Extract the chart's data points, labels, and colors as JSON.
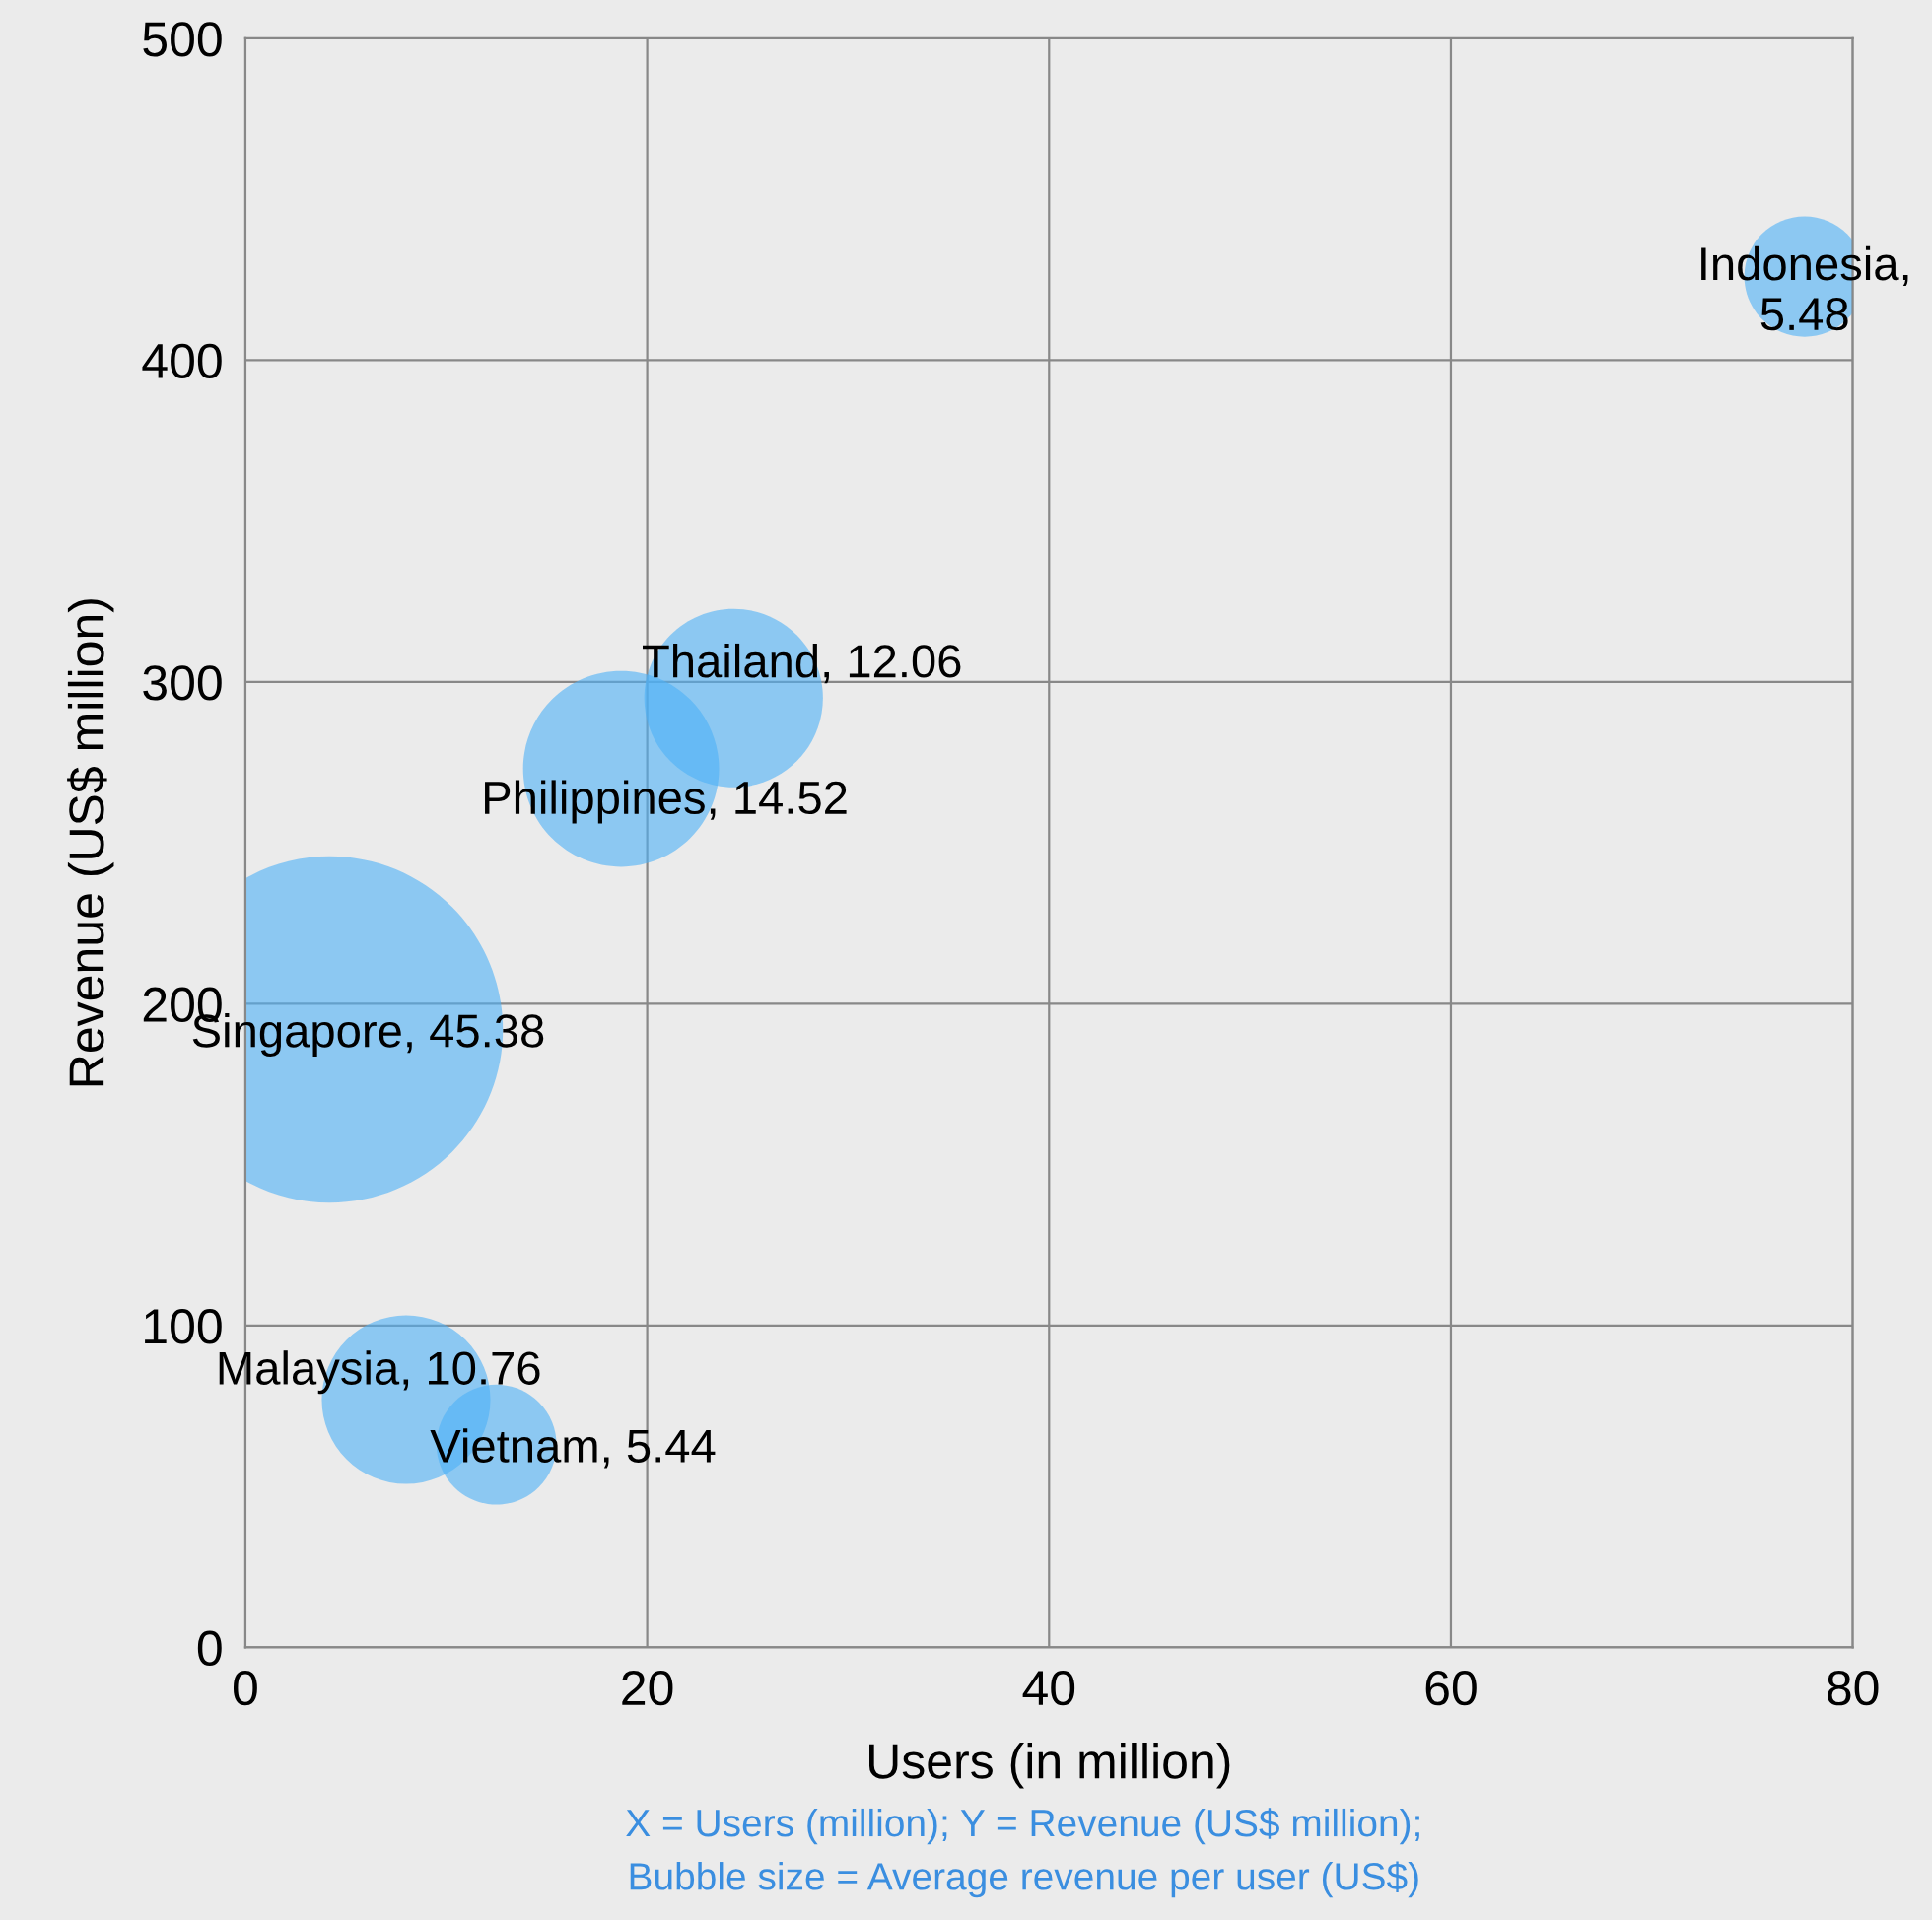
{
  "chart_data": {
    "type": "bubble",
    "xlabel": "Users (in million)",
    "ylabel": "Revenue (US$ million)",
    "x": [
      77.6,
      24.3,
      18.7,
      4.2,
      8.0,
      12.5
    ],
    "series": [
      {
        "color": "#4db0f7",
        "values": [
          426,
          295,
          273,
          192,
          77,
          63
        ],
        "sizes": [
          0.121,
          0.266,
          0.32,
          1,
          0.237,
          0.12
        ]
      }
    ],
    "xlim": [
      0,
      80
    ],
    "xticks": [
      0,
      20,
      40,
      60,
      80
    ],
    "ylim": [
      0,
      500
    ],
    "yticks": [
      0,
      100,
      200,
      300,
      400,
      500
    ],
    "grid": true,
    "annotations": [
      {
        "text": "Indonesia,\n5.48",
        "x": 77.6,
        "y": 426
      },
      {
        "text": "Thailand, 12.06",
        "x": 24.3,
        "y": 295
      },
      {
        "text": "Philippines, 14.52",
        "x": 18.7,
        "y": 273
      },
      {
        "text": "Singapore, 45.38",
        "x": 4.2,
        "y": 192
      },
      {
        "text": "Malaysia, 10.76",
        "x": 8.0,
        "y": 77
      },
      {
        "text": "Vietnam, 5.44",
        "x": 12.5,
        "y": 63
      },
      "X = Users (million); Y = Revenue (US$ million);\nBubble size = Average revenue per user (US$)"
    ]
  }
}
